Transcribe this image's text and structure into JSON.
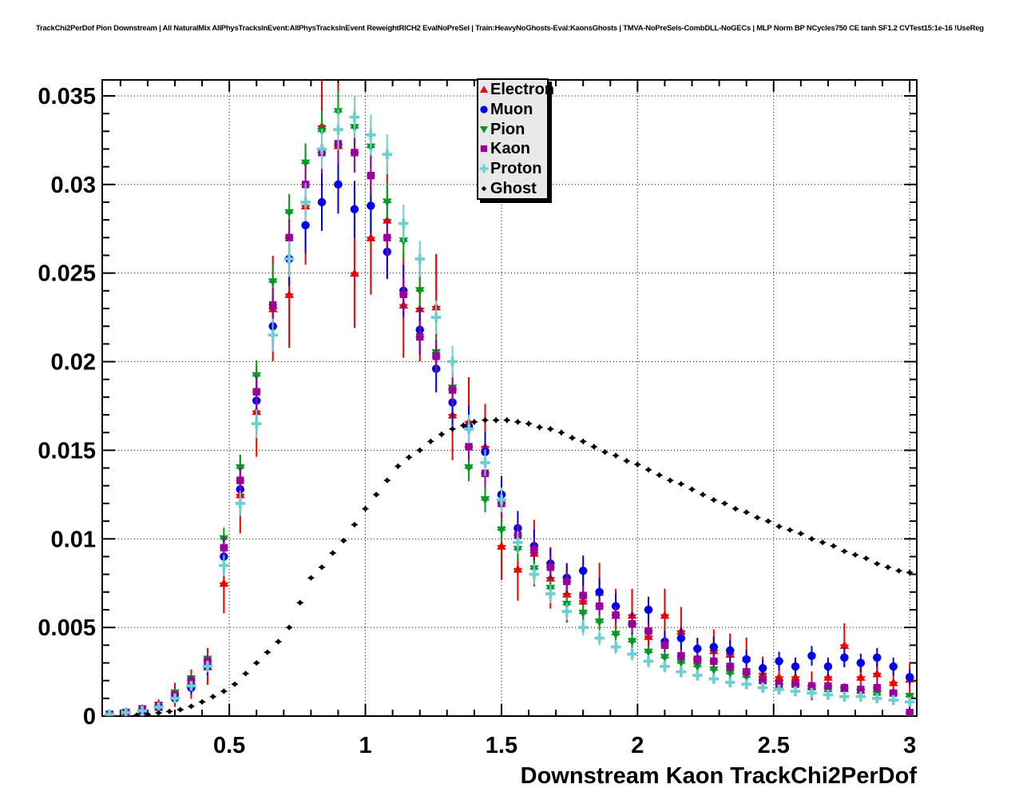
{
  "chart_data": {
    "type": "scatter",
    "title": "TrackChi2PerDof Pion Downstream | All NaturalMix AllPhysTracksInEvent:AllPhysTracksInEvent ReweightRICH2 EvalNoPreSel | Train:HeavyNoGhosts-Eval:KaonsGhosts | TMVA-NoPreSels-CombDLL-NoGECs | MLP Norm BP NCycles750 CE tanh SF1.2 CVTest15:1e-16 !UseReg",
    "xlabel": "Downstream Kaon TrackChi2PerDof",
    "ylabel": "",
    "xlim": [
      0.033,
      3.026
    ],
    "ylim": [
      0,
      0.0359
    ],
    "grid": "dotted-major",
    "legend_position": "top-center",
    "axis_color": "#000000",
    "x_ticks": {
      "values": [
        0.5,
        1,
        1.5,
        2,
        2.5,
        3
      ],
      "labels": [
        "0.5",
        "1",
        "1.5",
        "2",
        "2.5",
        "3"
      ],
      "minor_step": 0.1
    },
    "y_ticks": {
      "values": [
        0,
        0.005,
        0.01,
        0.015,
        0.02,
        0.025,
        0.03,
        0.035
      ],
      "labels": [
        "0",
        "0.005",
        "0.01",
        "0.015",
        "0.02",
        "0.025",
        "0.03",
        "0.035"
      ],
      "minor_step": 0.001
    },
    "x_colored": [
      0.06,
      0.12,
      0.18,
      0.24,
      0.3,
      0.36,
      0.42,
      0.48,
      0.54,
      0.6,
      0.66,
      0.72,
      0.78,
      0.84,
      0.9,
      0.96,
      1.02,
      1.08,
      1.14,
      1.2,
      1.26,
      1.32,
      1.38,
      1.44,
      1.5,
      1.56,
      1.62,
      1.68,
      1.74,
      1.8,
      1.86,
      1.92,
      1.98,
      2.04,
      2.1,
      2.16,
      2.22,
      2.28,
      2.34,
      2.4,
      2.46,
      2.52,
      2.58,
      2.64,
      2.7,
      2.76,
      2.82,
      2.88,
      2.94,
      3.0
    ],
    "x_ghost": [
      0.16,
      0.2,
      0.24,
      0.28,
      0.32,
      0.36,
      0.4,
      0.44,
      0.48,
      0.52,
      0.56,
      0.6,
      0.64,
      0.68,
      0.72,
      0.76,
      0.8,
      0.84,
      0.88,
      0.92,
      0.96,
      1.0,
      1.04,
      1.08,
      1.12,
      1.16,
      1.2,
      1.24,
      1.28,
      1.32,
      1.36,
      1.4,
      1.44,
      1.48,
      1.52,
      1.56,
      1.6,
      1.64,
      1.68,
      1.72,
      1.76,
      1.8,
      1.84,
      1.88,
      1.92,
      1.96,
      2.0,
      2.04,
      2.08,
      2.12,
      2.16,
      2.2,
      2.24,
      2.28,
      2.32,
      2.36,
      2.4,
      2.44,
      2.48,
      2.52,
      2.56,
      2.6,
      2.64,
      2.68,
      2.72,
      2.76,
      2.8,
      2.84,
      2.88,
      2.92,
      2.96,
      3.0
    ],
    "series": [
      {
        "name": "Electron",
        "marker": "triangle-up",
        "color": "#ee0000",
        "err_scale": 0.62,
        "x_bin_halfwidth": 0.015,
        "x_ref": "x_colored",
        "y": [
          0.0001,
          0.0002,
          0.0003,
          0.0005,
          0.0012,
          0.0018,
          0.0028,
          0.0075,
          0.0125,
          0.0172,
          0.023,
          0.0238,
          0.0288,
          0.0333,
          0.0322,
          0.025,
          0.027,
          0.028,
          0.0232,
          0.023,
          0.0231,
          0.017,
          0.0166,
          0.0152,
          0.0096,
          0.0083,
          0.0092,
          0.0078,
          0.0069,
          0.0065,
          0.007,
          0.0057,
          0.0057,
          0.0045,
          0.0057,
          0.0048,
          0.0033,
          0.0037,
          0.0035,
          0.0033,
          0.0024,
          0.0022,
          0.0022,
          0.0017,
          0.0022,
          0.004,
          0.0022,
          0.0024,
          0.0019,
          0.0021
        ]
      },
      {
        "name": "Muon",
        "marker": "circle",
        "color": "#0000ee",
        "err_scale": 0.3,
        "x_bin_halfwidth": 0.015,
        "x_ref": "x_colored",
        "y": [
          0.0001,
          0.0002,
          0.0003,
          0.0005,
          0.001,
          0.0016,
          0.0028,
          0.009,
          0.0128,
          0.0178,
          0.022,
          0.0258,
          0.0277,
          0.029,
          0.03,
          0.0286,
          0.0288,
          0.0262,
          0.024,
          0.0218,
          0.0196,
          0.0177,
          0.0163,
          0.0149,
          0.0125,
          0.0106,
          0.0096,
          0.0086,
          0.0078,
          0.0082,
          0.007,
          0.0062,
          0.0052,
          0.006,
          0.0042,
          0.0044,
          0.0038,
          0.0039,
          0.0037,
          0.0032,
          0.0027,
          0.0031,
          0.0028,
          0.0034,
          0.0028,
          0.0033,
          0.003,
          0.0033,
          0.0028,
          0.0022
        ]
      },
      {
        "name": "Pion",
        "marker": "triangle-down",
        "color": "#009922",
        "err_scale": 0.2,
        "x_bin_halfwidth": 0.015,
        "x_ref": "x_colored",
        "y": [
          0.0001,
          0.0002,
          0.0004,
          0.0006,
          0.0013,
          0.0021,
          0.0032,
          0.01,
          0.014,
          0.0192,
          0.0245,
          0.0284,
          0.0312,
          0.033,
          0.0341,
          0.0332,
          0.0321,
          0.029,
          0.0268,
          0.024,
          0.0205,
          0.0185,
          0.014,
          0.0122,
          0.0105,
          0.0094,
          0.0083,
          0.0072,
          0.0063,
          0.0058,
          0.0053,
          0.0046,
          0.0042,
          0.0036,
          0.0033,
          0.003,
          0.0028,
          0.0026,
          0.0024,
          0.0022,
          0.0019,
          0.0018,
          0.0017,
          0.0015,
          0.0014,
          0.0014,
          0.0013,
          0.0012,
          0.0012,
          0.0011
        ]
      },
      {
        "name": "Kaon",
        "marker": "square",
        "color": "#990099",
        "err_scale": 0.2,
        "x_bin_halfwidth": 0.015,
        "x_ref": "x_colored",
        "y": [
          0.0001,
          0.0002,
          0.0004,
          0.0006,
          0.0012,
          0.002,
          0.0031,
          0.0095,
          0.0133,
          0.0183,
          0.0232,
          0.027,
          0.03,
          0.0318,
          0.0323,
          0.0318,
          0.0305,
          0.027,
          0.0238,
          0.0214,
          0.0203,
          0.0184,
          0.0152,
          0.0137,
          0.012,
          0.0102,
          0.0094,
          0.0084,
          0.0076,
          0.0068,
          0.0062,
          0.0057,
          0.0052,
          0.0048,
          0.004,
          0.0034,
          0.0032,
          0.0031,
          0.0028,
          0.0025,
          0.002,
          0.0018,
          0.0018,
          0.0017,
          0.0017,
          0.0016,
          0.0015,
          0.0016,
          0.0013,
          0.0002
        ]
      },
      {
        "name": "Proton",
        "marker": "cross",
        "color": "#6fcfcf",
        "err_scale": 0.2,
        "x_bin_halfwidth": 0.015,
        "x_ref": "x_colored",
        "y": [
          0.0001,
          0.0002,
          0.0003,
          0.0005,
          0.001,
          0.0017,
          0.0028,
          0.0085,
          0.012,
          0.0165,
          0.0215,
          0.0258,
          0.029,
          0.032,
          0.0331,
          0.0338,
          0.0328,
          0.0317,
          0.0278,
          0.0258,
          0.0225,
          0.02,
          0.0162,
          0.0143,
          0.0122,
          0.0098,
          0.008,
          0.0069,
          0.0059,
          0.005,
          0.0044,
          0.0039,
          0.0035,
          0.0031,
          0.0028,
          0.0025,
          0.0023,
          0.0021,
          0.0019,
          0.0018,
          0.0016,
          0.0015,
          0.0014,
          0.0013,
          0.0012,
          0.0011,
          0.0011,
          0.001,
          0.0009,
          0.0008
        ]
      },
      {
        "name": "Ghost",
        "marker": "diamond",
        "color": "#000000",
        "err_scale": 0.04,
        "x_bin_halfwidth": 0.012,
        "x_ref": "x_ghost",
        "y": [
          5e-05,
          0.0001,
          0.00018,
          0.00026,
          0.00036,
          0.00055,
          0.0008,
          0.0011,
          0.0014,
          0.0018,
          0.0024,
          0.003,
          0.0036,
          0.0042,
          0.005,
          0.0064,
          0.0078,
          0.0084,
          0.0092,
          0.0099,
          0.0108,
          0.0117,
          0.0125,
          0.0133,
          0.0141,
          0.0146,
          0.015,
          0.0155,
          0.0159,
          0.0162,
          0.0164,
          0.0166,
          0.0167,
          0.0167,
          0.0167,
          0.0166,
          0.0165,
          0.0163,
          0.0162,
          0.016,
          0.0157,
          0.0155,
          0.0152,
          0.0149,
          0.0147,
          0.0144,
          0.0142,
          0.0139,
          0.0136,
          0.0133,
          0.0131,
          0.0128,
          0.0125,
          0.0122,
          0.012,
          0.0117,
          0.0115,
          0.0112,
          0.011,
          0.0107,
          0.0105,
          0.0103,
          0.01,
          0.0098,
          0.0096,
          0.0093,
          0.0091,
          0.0089,
          0.0086,
          0.0084,
          0.0082,
          0.0081
        ]
      }
    ]
  }
}
